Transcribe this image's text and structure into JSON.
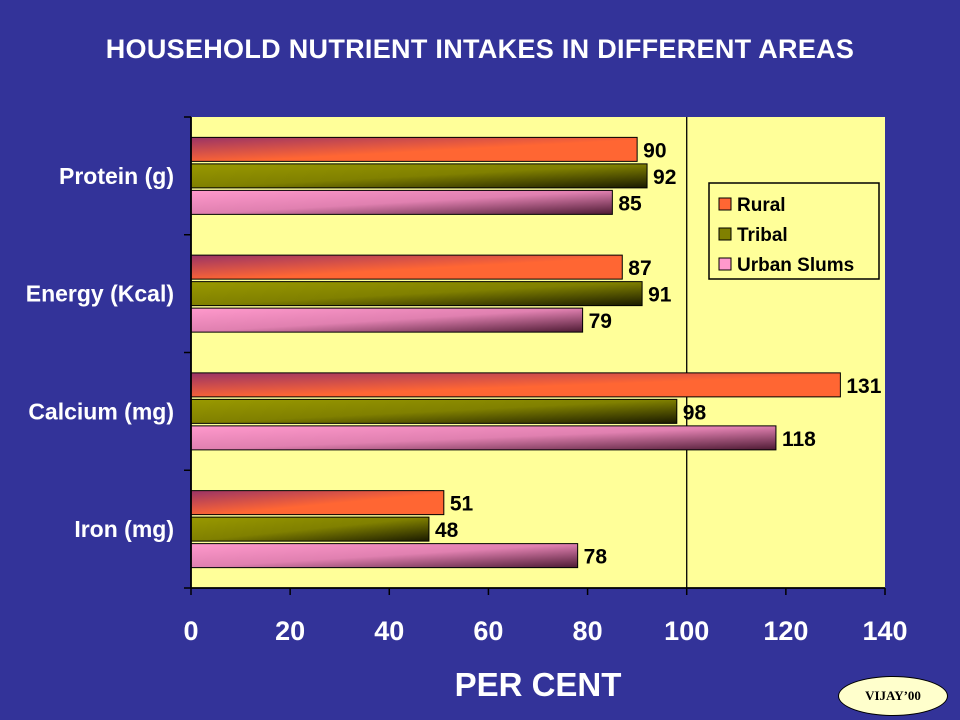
{
  "colors": {
    "background": "#333399",
    "plot_area": "#ffff99",
    "rural": "#ff6633",
    "tribal": "#808000",
    "urban_slums": "#ff99cc"
  },
  "badge": "VIJAY’00",
  "chart_data": {
    "type": "bar",
    "orientation": "horizontal",
    "title": "HOUSEHOLD NUTRIENT INTAKES IN DIFFERENT AREAS",
    "xlabel": "PER CENT",
    "ylabel": "",
    "xlim": [
      0,
      140
    ],
    "xticks": [
      0,
      20,
      40,
      60,
      80,
      100,
      120,
      140
    ],
    "reference_line": 100,
    "legend_position": "top-right",
    "categories": [
      "Protein (g)",
      "Energy (Kcal)",
      "Calcium (mg)",
      "Iron (mg)"
    ],
    "series": [
      {
        "name": "Rural",
        "values": [
          90,
          87,
          131,
          51
        ]
      },
      {
        "name": "Tribal",
        "values": [
          92,
          91,
          98,
          48
        ]
      },
      {
        "name": "Urban Slums",
        "values": [
          85,
          79,
          118,
          78
        ]
      }
    ]
  }
}
